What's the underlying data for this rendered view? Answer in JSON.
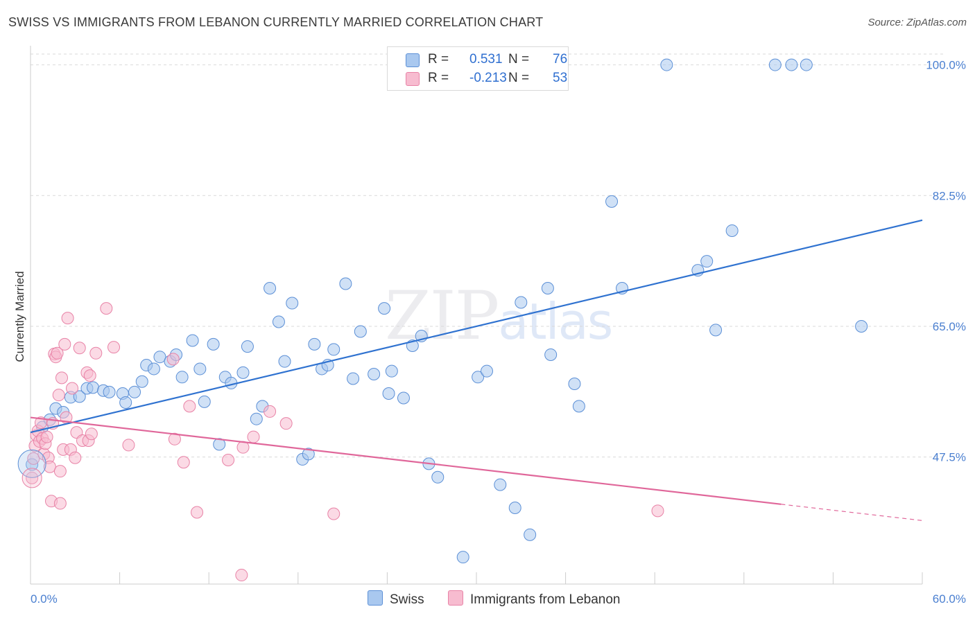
{
  "title": "SWISS VS IMMIGRANTS FROM LEBANON CURRENTLY MARRIED CORRELATION CHART",
  "source": "Source: ZipAtlas.com",
  "watermark": {
    "zip": "ZIP",
    "atlas": "atlas"
  },
  "colors": {
    "swiss_fill": "#a9c8ef",
    "swiss_stroke": "#5b8fd6",
    "swiss_line": "#2f72d0",
    "lebanon_fill": "#f7bcd0",
    "lebanon_stroke": "#e882a6",
    "lebanon_line": "#e0679a",
    "tick_label": "#4a7fd0",
    "grid": "#d9d9d9"
  },
  "legend": {
    "rows": [
      {
        "r_label": "R =",
        "r_value": "0.531",
        "n_label": "N =",
        "n_value": "76"
      },
      {
        "r_label": "R =",
        "r_value": "-0.213",
        "n_label": "N =",
        "n_value": "53"
      }
    ]
  },
  "bottom_legend": {
    "swiss": "Swiss",
    "lebanon": "Immigrants from Lebanon"
  },
  "chart_data": {
    "type": "scatter",
    "title": "SWISS VS IMMIGRANTS FROM LEBANON CURRENTLY MARRIED CORRELATION CHART",
    "xlabel": "",
    "ylabel": "Currently Married",
    "xlim": [
      0,
      60
    ],
    "ylim": [
      30.5,
      102
    ],
    "x_tick_labels": [
      "0.0%",
      "60.0%"
    ],
    "y_ticks": [
      47.5,
      65.0,
      82.5,
      100.0
    ],
    "y_tick_labels": [
      "47.5%",
      "65.0%",
      "82.5%",
      "100.0%"
    ],
    "grid": true,
    "legend_position": "top-center",
    "series": [
      {
        "name": "Swiss",
        "r": 0.531,
        "n": 76,
        "trend": {
          "x": [
            0,
            60
          ],
          "y": [
            50.8,
            79.2
          ],
          "solid_until": 60
        },
        "points": [
          [
            0.1,
            46.5
          ],
          [
            0.8,
            51.5
          ],
          [
            1.3,
            52.5
          ],
          [
            1.7,
            54
          ],
          [
            2.2,
            53.5
          ],
          [
            2.7,
            55.5
          ],
          [
            3.3,
            55.6
          ],
          [
            3.8,
            56.7
          ],
          [
            4.2,
            56.8
          ],
          [
            4.9,
            56.4
          ],
          [
            5.3,
            56.2
          ],
          [
            6.2,
            56.0
          ],
          [
            6.4,
            54.8
          ],
          [
            7.0,
            56.2
          ],
          [
            7.5,
            57.6
          ],
          [
            7.8,
            59.8
          ],
          [
            8.3,
            59.3
          ],
          [
            8.7,
            60.9
          ],
          [
            9.4,
            60.3
          ],
          [
            9.8,
            61.2
          ],
          [
            10.2,
            58.2
          ],
          [
            10.9,
            63.1
          ],
          [
            11.4,
            59.3
          ],
          [
            11.7,
            54.9
          ],
          [
            12.3,
            62.6
          ],
          [
            12.7,
            49.2
          ],
          [
            13.1,
            58.2
          ],
          [
            13.5,
            57.4
          ],
          [
            14.3,
            58.8
          ],
          [
            14.6,
            62.3
          ],
          [
            15.2,
            52.6
          ],
          [
            15.6,
            54.3
          ],
          [
            16.1,
            70.1
          ],
          [
            16.7,
            65.6
          ],
          [
            17.1,
            60.3
          ],
          [
            17.6,
            68.1
          ],
          [
            18.3,
            47.2
          ],
          [
            18.7,
            47.9
          ],
          [
            19.1,
            62.6
          ],
          [
            19.6,
            59.3
          ],
          [
            20.0,
            59.8
          ],
          [
            20.4,
            61.9
          ],
          [
            21.2,
            70.7
          ],
          [
            21.7,
            58.0
          ],
          [
            22.2,
            64.3
          ],
          [
            23.1,
            58.6
          ],
          [
            23.8,
            67.4
          ],
          [
            24.1,
            56.0
          ],
          [
            24.3,
            59.0
          ],
          [
            25.1,
            55.4
          ],
          [
            25.7,
            62.4
          ],
          [
            26.3,
            63.7
          ],
          [
            26.8,
            46.6
          ],
          [
            27.4,
            44.8
          ],
          [
            29.1,
            34.1
          ],
          [
            30.1,
            58.2
          ],
          [
            30.7,
            59.0
          ],
          [
            31.6,
            43.8
          ],
          [
            32.6,
            40.7
          ],
          [
            33.0,
            68.2
          ],
          [
            33.6,
            37.1
          ],
          [
            34.8,
            70.1
          ],
          [
            35.0,
            61.2
          ],
          [
            36.6,
            57.3
          ],
          [
            36.9,
            54.3
          ],
          [
            39.1,
            81.7
          ],
          [
            39.8,
            70.1
          ],
          [
            42.8,
            100.0
          ],
          [
            44.9,
            72.5
          ],
          [
            45.5,
            73.7
          ],
          [
            46.1,
            64.5
          ],
          [
            47.2,
            77.8
          ],
          [
            50.1,
            100.0
          ],
          [
            51.2,
            100.0
          ],
          [
            52.2,
            100.0
          ],
          [
            55.9,
            65.0
          ]
        ]
      },
      {
        "name": "Immigrants from Lebanon",
        "r": -0.213,
        "n": 53,
        "trend": {
          "x": [
            0,
            60
          ],
          "y": [
            52.8,
            39.0
          ],
          "solid_until": 50.5
        },
        "points": [
          [
            0.1,
            44.7
          ],
          [
            0.2,
            47.3
          ],
          [
            0.3,
            49.0
          ],
          [
            0.4,
            50.4
          ],
          [
            0.5,
            51.0
          ],
          [
            0.6,
            49.6
          ],
          [
            0.7,
            52.1
          ],
          [
            0.8,
            50.0
          ],
          [
            0.9,
            47.9
          ],
          [
            1.0,
            49.3
          ],
          [
            1.1,
            50.2
          ],
          [
            1.2,
            47.4
          ],
          [
            1.3,
            46.2
          ],
          [
            1.4,
            41.6
          ],
          [
            1.5,
            52.0
          ],
          [
            1.6,
            61.3
          ],
          [
            1.7,
            60.9
          ],
          [
            1.8,
            61.4
          ],
          [
            1.9,
            55.8
          ],
          [
            2.0,
            45.6
          ],
          [
            2.0,
            41.3
          ],
          [
            2.1,
            58.1
          ],
          [
            2.2,
            48.5
          ],
          [
            2.3,
            62.6
          ],
          [
            2.4,
            52.8
          ],
          [
            2.5,
            66.1
          ],
          [
            2.7,
            48.5
          ],
          [
            2.8,
            56.7
          ],
          [
            3.0,
            47.4
          ],
          [
            3.1,
            50.8
          ],
          [
            3.3,
            62.1
          ],
          [
            3.5,
            49.7
          ],
          [
            3.8,
            58.8
          ],
          [
            3.9,
            49.7
          ],
          [
            4.0,
            58.4
          ],
          [
            4.1,
            50.6
          ],
          [
            4.4,
            61.4
          ],
          [
            5.1,
            67.4
          ],
          [
            5.6,
            62.2
          ],
          [
            6.6,
            49.1
          ],
          [
            9.6,
            60.6
          ],
          [
            9.7,
            49.9
          ],
          [
            10.3,
            46.8
          ],
          [
            10.7,
            54.3
          ],
          [
            11.2,
            40.1
          ],
          [
            13.3,
            47.1
          ],
          [
            14.2,
            31.7
          ],
          [
            14.3,
            48.8
          ],
          [
            15.0,
            50.2
          ],
          [
            16.1,
            53.6
          ],
          [
            17.2,
            52.0
          ],
          [
            20.4,
            39.9
          ],
          [
            42.2,
            40.3
          ]
        ]
      }
    ]
  }
}
